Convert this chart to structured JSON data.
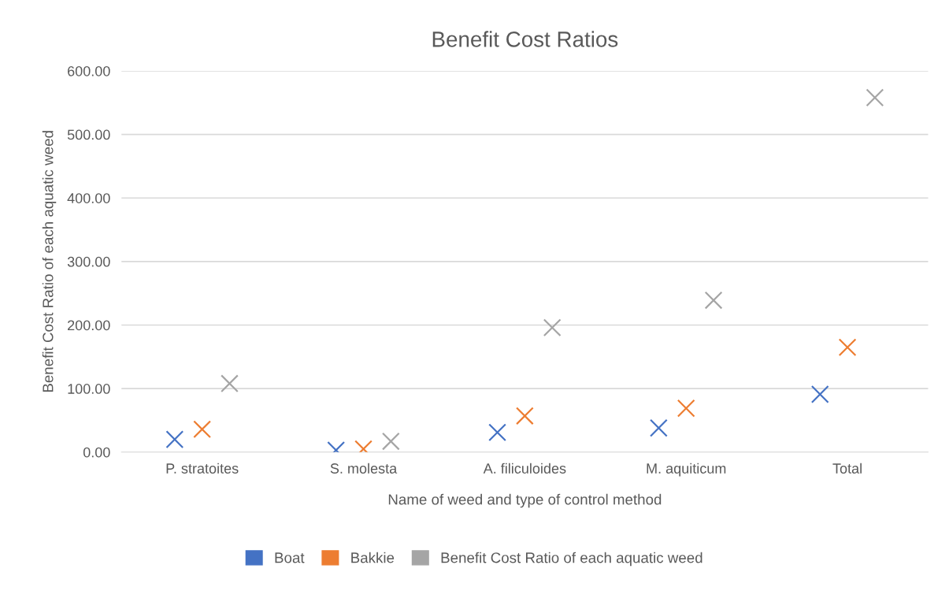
{
  "chart_data": {
    "type": "scatter",
    "title": "Benefit Cost Ratios",
    "xlabel": "Name of weed and type of control method",
    "ylabel": "Benefit Cost Ratio of each aquatic weed",
    "categories": [
      "P. stratoites",
      "S. molesta",
      "A. filiculoides",
      "M. aquiticum",
      "Total"
    ],
    "series": [
      {
        "name": "Boat",
        "color": "#4472c4",
        "values": [
          20,
          3,
          31,
          38,
          91
        ]
      },
      {
        "name": "Bakkie",
        "color": "#ed7d31",
        "values": [
          36,
          5,
          57,
          69,
          165
        ]
      },
      {
        "name": "Benefit Cost Ratio of each aquatic weed",
        "color": "#a5a5a5",
        "values": [
          108,
          17,
          196,
          239,
          558
        ]
      }
    ],
    "ylim": [
      0,
      600
    ],
    "yticks": [
      {
        "value": 0,
        "label": "0.00"
      },
      {
        "value": 100,
        "label": "100.00"
      },
      {
        "value": 200,
        "label": "200.00"
      },
      {
        "value": 300,
        "label": "300.00"
      },
      {
        "value": 400,
        "label": "400.00"
      },
      {
        "value": 500,
        "label": "500.00"
      },
      {
        "value": 600,
        "label": "600.00"
      }
    ],
    "grid": "y",
    "legend": "bottom",
    "marker": "cross"
  }
}
